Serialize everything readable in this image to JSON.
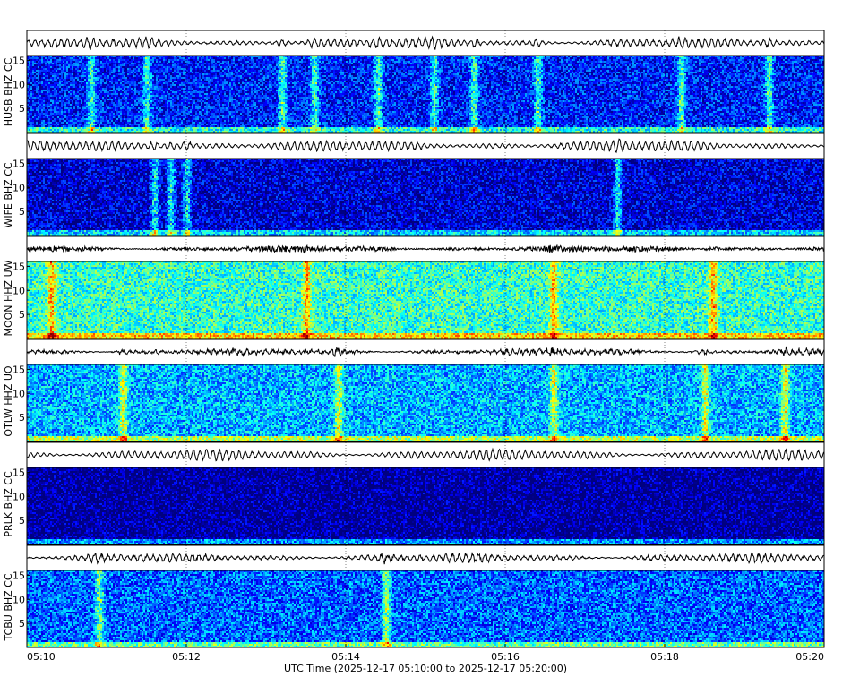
{
  "chart_data": {
    "type": "heatmap",
    "title": "",
    "xlabel": "UTC Time (2025-12-17 05:10:00 to 2025-12-17 05:20:00)",
    "x_ticks": [
      "05:10",
      "05:12",
      "05:14",
      "05:16",
      "05:18",
      "05:20"
    ],
    "x_range_minutes": [
      0,
      10
    ],
    "y_ticks": [
      "5",
      "10",
      "15"
    ],
    "y_range_hz": [
      0,
      16
    ],
    "colormap": "jet",
    "grid": true,
    "stations": [
      {
        "label": "HUSB BHZ CC",
        "background_level": 0.15,
        "trace_amp": 0.55,
        "trace_wave": 0.9,
        "events_min": [
          0.8,
          1.5,
          3.2,
          3.6,
          4.4,
          5.1,
          5.6,
          6.4,
          8.2,
          9.3
        ]
      },
      {
        "label": "WIFE BHZ CC",
        "background_level": 0.08,
        "trace_amp": 0.6,
        "trace_wave": 1.0,
        "events_min": [
          1.6,
          1.8,
          2.0,
          7.4
        ]
      },
      {
        "label": "MOON HHZ UW",
        "background_level": 0.42,
        "trace_amp": 0.45,
        "trace_wave": 0.1,
        "events_min": [
          0.3,
          3.5,
          6.6,
          8.6
        ]
      },
      {
        "label": "OTLW HHZ UO",
        "background_level": 0.3,
        "trace_amp": 0.5,
        "trace_wave": 0.5,
        "events_min": [
          1.2,
          3.9,
          6.6,
          8.5,
          9.5
        ]
      },
      {
        "label": "PRLK BHZ CC",
        "background_level": 0.02,
        "trace_amp": 0.6,
        "trace_wave": 1.0,
        "events_min": []
      },
      {
        "label": "TCBU BHZ CC",
        "background_level": 0.22,
        "trace_amp": 0.55,
        "trace_wave": 0.8,
        "events_min": [
          0.9,
          4.5
        ]
      }
    ]
  }
}
